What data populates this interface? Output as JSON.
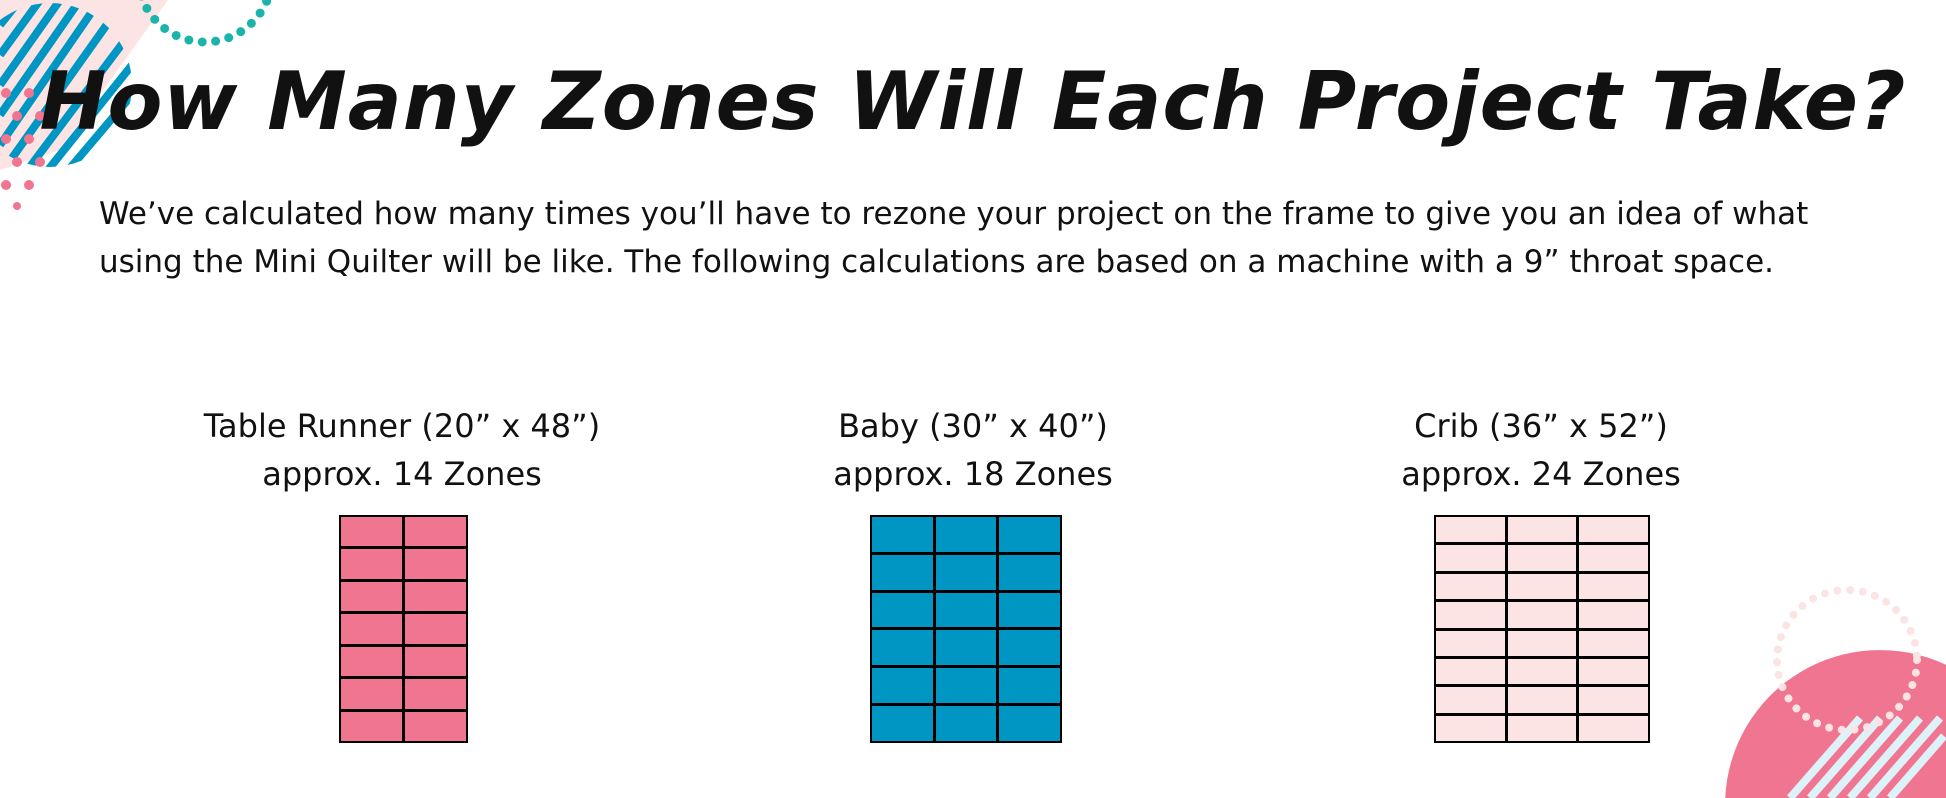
{
  "title": "How Many Zones Will Each Project Take?",
  "intro": "We’ve calculated how many times you’ll have to rezone your project on the frame to give you an idea of what using the Mini Quilter will be like. The following calculations are based on a machine with a 9” throat space.",
  "colors": {
    "pink": "#F07590",
    "blue": "#0096C4",
    "light_pink": "#FCE4E4",
    "teal": "#1AB5A8",
    "light_blue": "#DDF1F8"
  },
  "projects": [
    {
      "name": "Table Runner (20” x 48”)",
      "zones": "approx. 14 Zones",
      "cols": 2,
      "rows": 7,
      "color": "#F07590"
    },
    {
      "name": "Baby (30” x 40”)",
      "zones": "approx. 18 Zones",
      "cols": 3,
      "rows": 6,
      "color": "#0096C4"
    },
    {
      "name": "Crib (36” x 52”)",
      "zones": "approx. 24 Zones",
      "cols": 3,
      "rows": 8,
      "color": "#FCE4E4"
    }
  ]
}
